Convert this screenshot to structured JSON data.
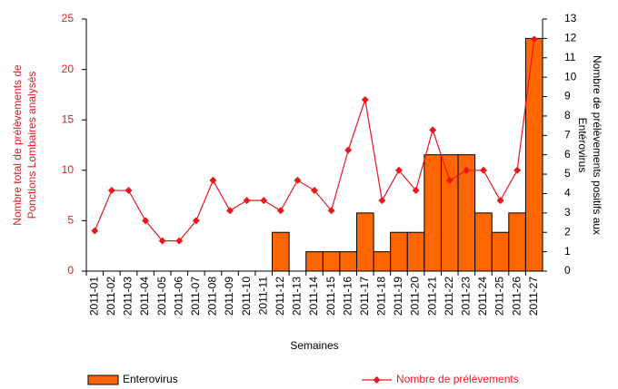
{
  "chart_data": {
    "type": "combo",
    "categories": [
      "2011-01",
      "2011-02",
      "2011-03",
      "2011-04",
      "2011-05",
      "2011-06",
      "2011-07",
      "2011-08",
      "2011-09",
      "2011-10",
      "2011-11",
      "2011-12",
      "2011-13",
      "2011-14",
      "2011-15",
      "2011-16",
      "2011-17",
      "2011-18",
      "2011-19",
      "2011-20",
      "2011-21",
      "2011-22",
      "2011-23",
      "2011-24",
      "2011-25",
      "2011-26",
      "2011-27"
    ],
    "series": [
      {
        "name": "Enterovirus",
        "type": "bar",
        "axis": "y2",
        "color": "#ff6600",
        "values": [
          0,
          0,
          0,
          0,
          0,
          0,
          0,
          0,
          0,
          0,
          0,
          2,
          0,
          1,
          1,
          1,
          3,
          1,
          2,
          2,
          6,
          6,
          6,
          3,
          2,
          3,
          12
        ]
      },
      {
        "name": "Nombre de prélèvements",
        "type": "line",
        "color": "#e8191e",
        "values": [
          4,
          8,
          8,
          5,
          3,
          3,
          5,
          9,
          6,
          7,
          7,
          6,
          9,
          8,
          6,
          12,
          17,
          7,
          10,
          8,
          14,
          9,
          10,
          10,
          7,
          10,
          23
        ]
      }
    ],
    "ylim": [
      0,
      25
    ],
    "yticks": [
      0,
      5,
      10,
      15,
      20,
      25
    ],
    "y2lim": [
      0,
      13
    ],
    "y2ticks": [
      0,
      1,
      2,
      3,
      4,
      5,
      6,
      7,
      8,
      9,
      10,
      11,
      12,
      13
    ],
    "ylabel": [
      "Nombre total de prélèvements de",
      "Ponctions Lombaires analysés"
    ],
    "y2label": [
      "Nombre de prélèvements positifs aux",
      "Entérovirus"
    ],
    "xlabel": "Semaines"
  }
}
